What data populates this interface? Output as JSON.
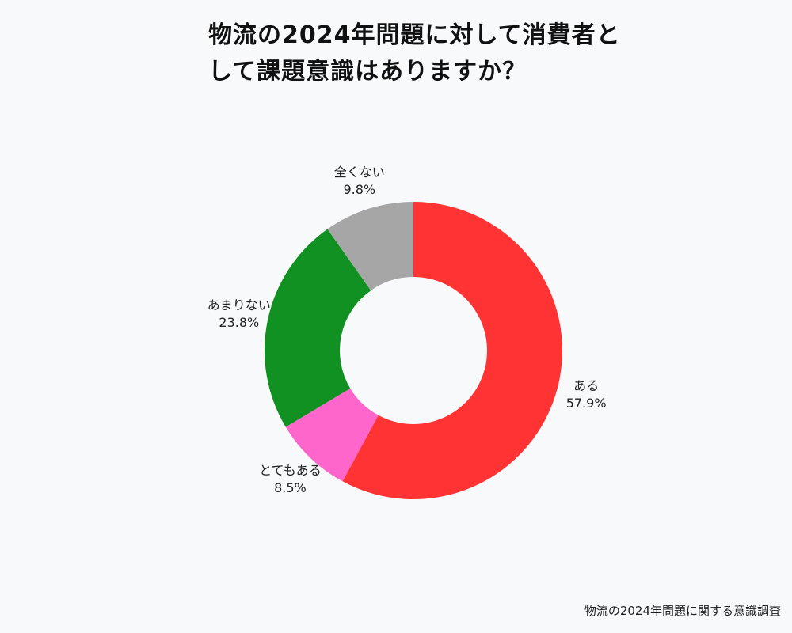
{
  "chart_data": {
    "type": "donut",
    "title": "物流の2024年問題に対して消費者として課題意識はありますか？",
    "source": "物流の2024年問題に関する意識調査",
    "categories": [
      "ある",
      "とてもある",
      "あまりない",
      "全くない"
    ],
    "values": [
      57.9,
      8.5,
      23.8,
      9.8
    ],
    "value_labels": [
      "57.9%",
      "8.5%",
      "23.8%",
      "9.8%"
    ],
    "colors": [
      "#ff3333",
      "#ff66cc",
      "#119122",
      "#a6a6a6"
    ]
  }
}
